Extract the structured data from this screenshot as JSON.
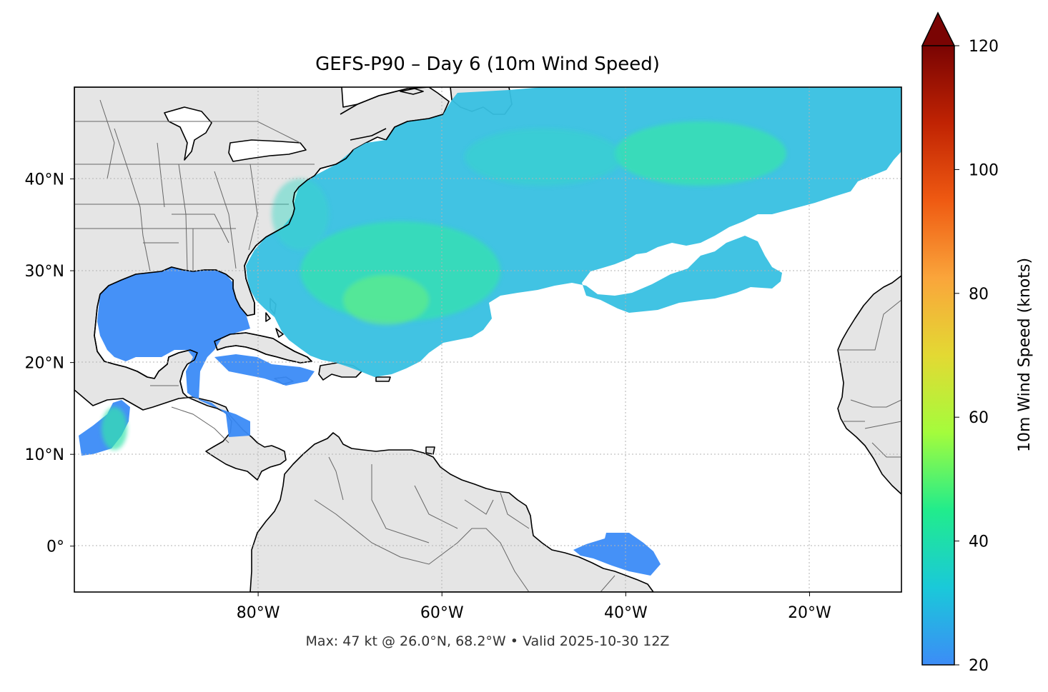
{
  "title": "GEFS-P90 – Day 6 (10m Wind Speed)",
  "footer": "Max: 47 kt @ 26.0°N, 68.2°W • Valid 2025-10-30 12Z",
  "map": {
    "lon_range": [
      -100,
      -10
    ],
    "lat_range": [
      -5,
      50
    ],
    "lon_ticks": [
      {
        "value": -80,
        "label": "80°W"
      },
      {
        "value": -60,
        "label": "60°W"
      },
      {
        "value": -40,
        "label": "40°W"
      },
      {
        "value": -20,
        "label": "20°W"
      }
    ],
    "lat_ticks": [
      {
        "value": 40,
        "label": "40°N"
      },
      {
        "value": 30,
        "label": "30°N"
      },
      {
        "value": 20,
        "label": "20°N"
      },
      {
        "value": 10,
        "label": "10°N"
      },
      {
        "value": 0,
        "label": "0°"
      }
    ],
    "land_color": "#e5e5e5",
    "coast_color": "#000000",
    "border_color": "#666666",
    "gridlines": true,
    "max_marker": {
      "value": 47,
      "lat": 26.0,
      "lon": -68.2
    }
  },
  "colorbar": {
    "label": "10m Wind Speed (knots)",
    "vmin": 20,
    "vmax": 120,
    "extend": "max",
    "ticks": [
      {
        "value": 20,
        "label": "20"
      },
      {
        "value": 40,
        "label": "40"
      },
      {
        "value": 60,
        "label": "60"
      },
      {
        "value": 80,
        "label": "80"
      },
      {
        "value": 100,
        "label": "100"
      },
      {
        "value": 120,
        "label": "120"
      }
    ],
    "colors": [
      "#3c8cf7",
      "#1ac9d9",
      "#21ec8c",
      "#a4fc3c",
      "#e3d933",
      "#faa53b",
      "#ef5a12",
      "#c02303",
      "#7a0403"
    ]
  }
}
